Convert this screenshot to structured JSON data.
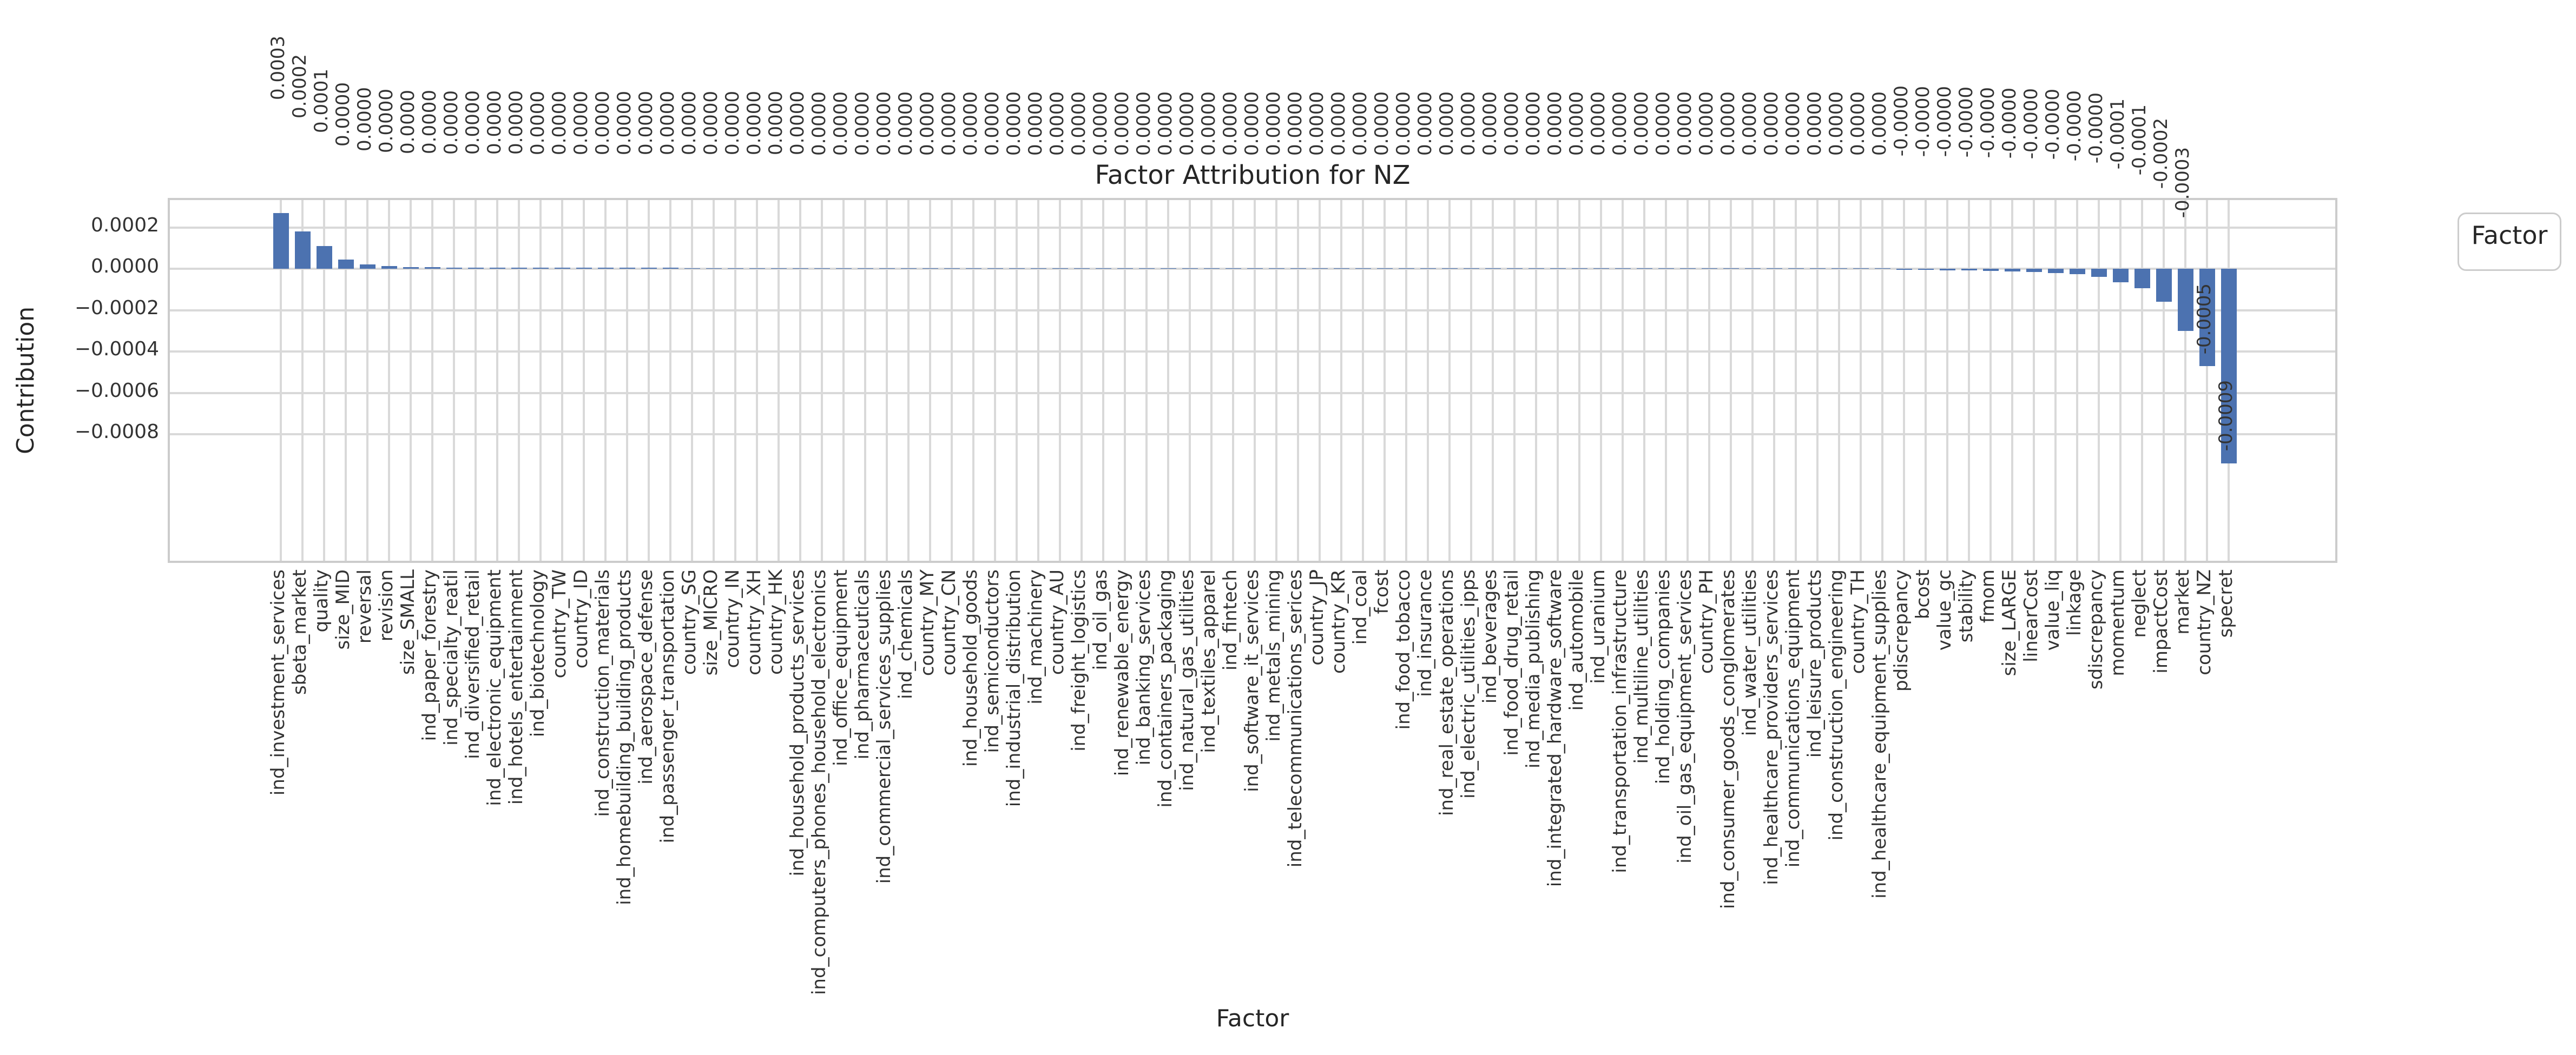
{
  "title": "Factor Attribution for NZ",
  "legend": {
    "title": "Factor"
  },
  "axes": {
    "x_label": "Factor",
    "y_label": "Contribution",
    "y_ticks": [
      "0.0002",
      "0.0000",
      "−0.0002",
      "−0.0004",
      "−0.0006",
      "−0.0008"
    ],
    "y_tick_values": [
      0.0002,
      0.0,
      -0.0002,
      -0.0004,
      -0.0006,
      -0.0008
    ]
  },
  "colors": {
    "bar": "#4c72b0",
    "grid": "#d9d9d9",
    "border": "#cccccc",
    "text": "#262626"
  },
  "chart_data": {
    "type": "bar",
    "title": "Factor Attribution for NZ",
    "xlabel": "Factor",
    "ylabel": "Contribution",
    "ylim": [
      -0.001433,
      0.000332
    ],
    "grid": true,
    "legend_title": "Factor",
    "legend_position": "outside-right",
    "categories": [
      "ind_investment_services",
      "sbeta_market",
      "quality",
      "size_MID",
      "reversal",
      "revision",
      "size_SMALL",
      "ind_paper_forestry",
      "ind_specialty_reatil",
      "ind_diversified_retail",
      "ind_electronic_equipment",
      "ind_hotels_entertainment",
      "ind_biotechnology",
      "country_TW",
      "country_ID",
      "ind_construction_materials",
      "ind_homebuilding_building_products",
      "ind_aerospace_defense",
      "ind_passenger_transportation",
      "country_SG",
      "size_MICRO",
      "country_IN",
      "country_XH",
      "country_HK",
      "ind_household_products_services",
      "ind_computers_phones_household_electronics",
      "ind_office_equipment",
      "ind_pharmaceuticals",
      "ind_commercial_services_supplies",
      "ind_chemicals",
      "country_MY",
      "country_CN",
      "ind_household_goods",
      "ind_semiconductors",
      "ind_industrial_distribution",
      "ind_machinery",
      "country_AU",
      "ind_freight_logistics",
      "ind_oil_gas",
      "ind_renewable_energy",
      "ind_banking_services",
      "ind_containers_packaging",
      "ind_natural_gas_utilities",
      "ind_textiles_apparel",
      "ind_fintech",
      "ind_software_it_services",
      "ind_metals_mining",
      "ind_telecommunications_serices",
      "country_JP",
      "country_KR",
      "ind_coal",
      "fcost",
      "ind_food_tobacco",
      "ind_insurance",
      "ind_real_estate_operations",
      "ind_electric_utilities_ipps",
      "ind_beverages",
      "ind_food_drug_retail",
      "ind_media_publishing",
      "ind_integrated_hardware_software",
      "ind_automobile",
      "ind_uranium",
      "ind_transportation_infrastructure",
      "ind_multiline_utilities",
      "ind_holding_companies",
      "ind_oil_gas_equipment_services",
      "country_PH",
      "ind_consumer_goods_conglomerates",
      "ind_water_utilities",
      "ind_healthcare_providers_services",
      "ind_communications_equipment",
      "ind_leisure_products",
      "ind_construction_engineering",
      "country_TH",
      "ind_healthcare_equipment_supplies",
      "pdiscrepancy",
      "bcost",
      "value_gc",
      "stability",
      "fmom",
      "size_LARGE",
      "linearCost",
      "value_liq",
      "linkage",
      "sdiscrepancy",
      "momentum",
      "neglect",
      "impactCost",
      "market",
      "country_NZ",
      "specret"
    ],
    "values": [
      0.00027,
      0.00018,
      0.00011,
      4.5e-05,
      2.2e-05,
      1.3e-05,
      9e-06,
      7e-06,
      6e-06,
      5.2e-06,
      4.6e-06,
      4.1e-06,
      3.7e-06,
      3.4e-06,
      3.1e-06,
      2.8e-06,
      2.6e-06,
      2.4e-06,
      2.2e-06,
      2e-06,
      1.9e-06,
      1.8e-06,
      1.7e-06,
      1.6e-06,
      1.5e-06,
      1.4e-06,
      1.3e-06,
      1.2e-06,
      1.1e-06,
      1e-06,
      9.5e-07,
      9e-07,
      8.5e-07,
      8e-07,
      7.5e-07,
      7e-07,
      6.5e-07,
      6e-07,
      5.5e-07,
      5e-07,
      4.5e-07,
      4e-07,
      3.8e-07,
      3.5e-07,
      3.2e-07,
      3e-07,
      2.8e-07,
      2.5e-07,
      2.2e-07,
      2e-07,
      1.8e-07,
      1.6e-07,
      1.4e-07,
      1.2e-07,
      1e-07,
      9e-08,
      8e-08,
      7e-08,
      6e-08,
      5e-08,
      4e-08,
      3.5e-08,
      3e-08,
      2.5e-08,
      2e-08,
      1.5e-08,
      1e-08,
      8e-09,
      6e-09,
      5e-09,
      4e-09,
      3e-09,
      2e-09,
      1e-09,
      5e-10,
      -3e-06,
      -5e-06,
      -7e-06,
      -9e-06,
      -1.1e-05,
      -1.3e-05,
      -1.6e-05,
      -2e-05,
      -2.6e-05,
      -3.8e-05,
      -6.5e-05,
      -9.5e-05,
      -0.00016,
      -0.0003,
      -0.00047,
      -0.00094
    ],
    "bar_labels": [
      "0.0003",
      "0.0002",
      "0.0001",
      "0.0000",
      "0.0000",
      "0.0000",
      "0.0000",
      "0.0000",
      "0.0000",
      "0.0000",
      "0.0000",
      "0.0000",
      "0.0000",
      "0.0000",
      "0.0000",
      "0.0000",
      "0.0000",
      "0.0000",
      "0.0000",
      "0.0000",
      "0.0000",
      "0.0000",
      "0.0000",
      "0.0000",
      "0.0000",
      "0.0000",
      "0.0000",
      "0.0000",
      "0.0000",
      "0.0000",
      "0.0000",
      "0.0000",
      "0.0000",
      "0.0000",
      "0.0000",
      "0.0000",
      "0.0000",
      "0.0000",
      "0.0000",
      "0.0000",
      "0.0000",
      "0.0000",
      "0.0000",
      "0.0000",
      "0.0000",
      "0.0000",
      "0.0000",
      "0.0000",
      "0.0000",
      "0.0000",
      "0.0000",
      "0.0000",
      "0.0000",
      "0.0000",
      "0.0000",
      "0.0000",
      "0.0000",
      "0.0000",
      "0.0000",
      "0.0000",
      "0.0000",
      "0.0000",
      "0.0000",
      "0.0000",
      "0.0000",
      "0.0000",
      "0.0000",
      "0.0000",
      "0.0000",
      "0.0000",
      "0.0000",
      "0.0000",
      "0.0000",
      "0.0000",
      "0.0000",
      "-0.0000",
      "-0.0000",
      "-0.0000",
      "-0.0000",
      "-0.0000",
      "-0.0000",
      "-0.0000",
      "-0.0000",
      "-0.0000",
      "-0.0000",
      "-0.0001",
      "-0.0001",
      "-0.0002",
      "-0.0003",
      "-0.0005",
      "-0.0009"
    ]
  }
}
